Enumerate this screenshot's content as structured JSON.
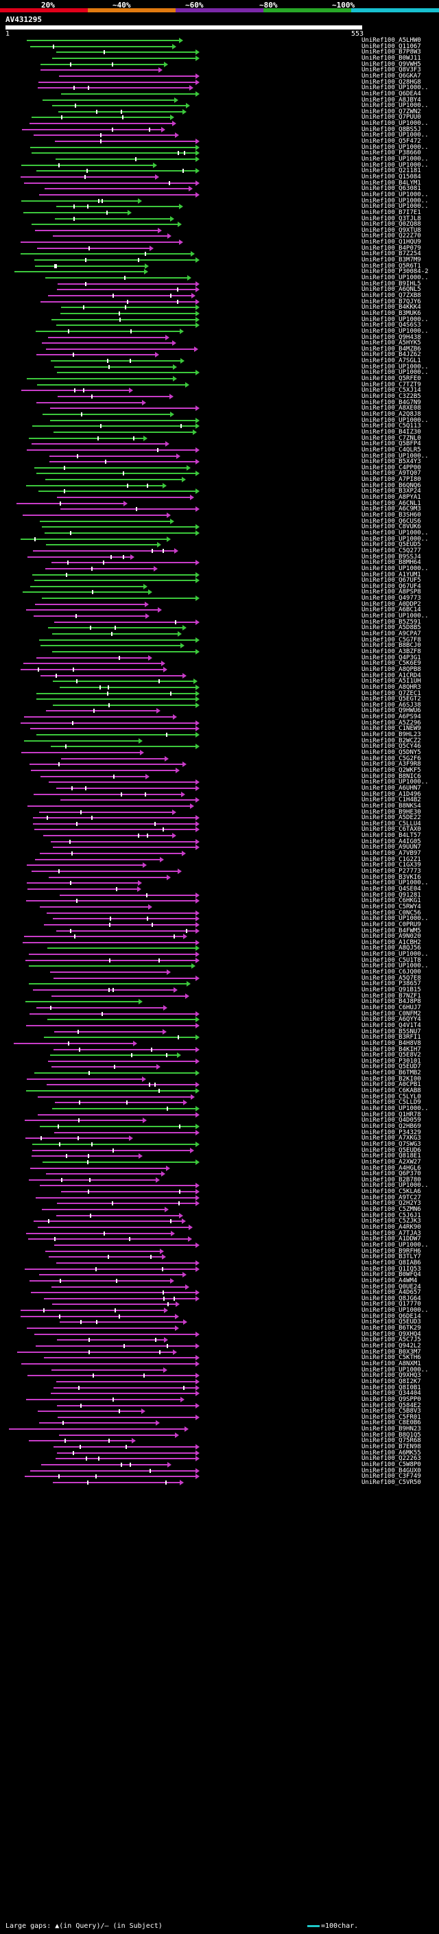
{
  "legend": {
    "labels": [
      "20%",
      "~40%",
      "~60%",
      "~80%",
      "~100%"
    ],
    "band_colors": [
      "#e0001a",
      "#e07a10",
      "#7a28a8",
      "#28a828",
      "#18c0d0"
    ]
  },
  "query": {
    "title": "AV431295",
    "start_tick": "1",
    "end_tick": "553"
  },
  "colors": {
    "high": "#3cc83c",
    "mid": "#c83cc8",
    "gap": "#ffffff"
  },
  "hits": [
    "UniRef100_A5LHW0",
    "UniRef100_Q11067",
    "UniRef100_B7P8W3",
    "UniRef100_B0WJ11",
    "UniRef100_Q9VWH5",
    "UniRef100_Q8V3F3",
    "UniRef100_Q6GKA7",
    "UniRef100_Q28HG8",
    "UniRef100_UP1000..",
    "UniRef100_Q6DEA4",
    "UniRef100_A8JBY4",
    "UniRef100_UP1000..",
    "UniRef100_Q7ZWN2",
    "UniRef100_Q7PUU0",
    "UniRef100_UP1000..",
    "UniRef100_Q8BS5J",
    "UniRef100_UP1000..",
    "UniRef100_Q5F472",
    "UniRef100_UP1000..",
    "UniRef100_P38660",
    "UniRef100_UP1000..",
    "UniRef100_UP1000..",
    "UniRef100_Q21181",
    "UniRef100_Q15084",
    "UniRef100_B4LYM1",
    "UniRef100_Q63081",
    "UniRef100_UP1000..",
    "UniRef100_UP1000..",
    "UniRef100_UP1000..",
    "UniRef100_B7I7E1",
    "UniRef100_Q3TJL8",
    "UniRef100_Q0ZQ88",
    "UniRef100_Q9XTU8",
    "UniRef100_Q22Z70",
    "UniRef100_Q1HQU9",
    "UniRef100_B4P079",
    "UniRef100_B7Z254",
    "UniRef100_B3M7M9",
    "UniRef100_Q5R6T1",
    "UniRef100_P30084-2",
    "UniRef100_UP1000..",
    "UniRef100_B9IHL5",
    "UniRef100_A6QNL5",
    "UniRef100_Q7ZXB8",
    "UniRef100_B7QJY6",
    "UniRef100_B4KKK4",
    "UniRef100_B3MUK6",
    "UniRef100_UP1000..",
    "UniRef100_Q4S6S3",
    "UniRef100_UP1000..",
    "UniRef100_Q9H438",
    "UniRef100_A5HYK5",
    "UniRef100_B4MZB6",
    "UniRef100_B4JZ62",
    "UniRef100_A7SGL1",
    "UniRef100_UP1000..",
    "UniRef100_UP1000..",
    "UniRef100_Q5RFE0",
    "UniRef100_C7TZT9",
    "UniRef100_C5XJ14",
    "UniRef100_C3Z2B5",
    "UniRef100_B4G7N9",
    "UniRef100_A8XE08",
    "UniRef100_A2Q8J8",
    "UniRef100_UP1000..",
    "UniRef100_C5Q113",
    "UniRef100_B4IZ30",
    "UniRef100_C7ZNL0",
    "UniRef100_Q5BFP4",
    "UniRef100_C4QLR5",
    "UniRef100_UP1000..",
    "UniRef100_B5X4Y3",
    "UniRef100_C4PP00",
    "UniRef100_A9TQ07",
    "UniRef100_A7PI80",
    "UniRef100_B6QNQ6",
    "UniRef100_B3XP24",
    "UniRef100_A8PYA1",
    "UniRef100_A6CNL1",
    "UniRef100_A6C9M3",
    "UniRef100_B3SH60",
    "UniRef100_Q6CUS6",
    "UniRef100_C8VUK6",
    "UniRef100_UP1000..",
    "UniRef100_UP1000..",
    "UniRef100_Q5EUD5",
    "UniRef100_C5Q277",
    "UniRef100_B9SSJ4",
    "UniRef100_B8MH64",
    "UniRef100_UP1000..",
    "UniRef100_A1YUM1",
    "UniRef100_Q67UF5",
    "UniRef100_Q67UF4",
    "UniRef100_A8PSP8",
    "UniRef100_Q49773",
    "UniRef100_A0DDP2",
    "UniRef100_A6BC14",
    "UniRef100_UP1000..",
    "UniRef100_B5Z591",
    "UniRef100_A5D8B5",
    "UniRef100_A9CPA7",
    "UniRef100_C5G7F8",
    "UniRef100_B8BCJ0",
    "UniRef100_A3BZF8",
    "UniRef100_Q4P3G1",
    "UniRef100_C5K6E9",
    "UniRef100_A8QPB8",
    "UniRef100_A1CRD4",
    "UniRef100_A5I1UH",
    "UniRef100_A8QHR3",
    "UniRef100_Q7ZEC1",
    "UniRef100_Q5EGT2",
    "UniRef100_A6SJ38",
    "UniRef100_Q9HWU6",
    "UniRef100_A6PS94",
    "UniRef100_A5Z296",
    "UniRef100_C1NEW9",
    "UniRef100_B9HL23",
    "UniRef100_B2WCZ2",
    "UniRef100_Q5CY46",
    "UniRef100_Q5DNY5",
    "UniRef100_C5G2F6",
    "UniRef100_A3F9R8",
    "UniRef100_Q2WKF5",
    "UniRef100_B8NIC6",
    "UniRef100_UP1000..",
    "UniRef100_A6UHN7",
    "UniRef100_A1D496",
    "UniRef100_C1H4B2",
    "UniRef100_B8NKS4",
    "UniRef100_B9HE30",
    "UniRef100_A5DE22",
    "UniRef100_C5LLU4",
    "UniRef100_C6TAX0",
    "UniRef100_B4LT57",
    "UniRef100_A4IG05",
    "UniRef100_A9UUN7",
    "UniRef100_A7VB97",
    "UniRef100_C1G2Z1",
    "UniRef100_C1GX39",
    "UniRef100_P27773",
    "UniRef100_B3VKI6",
    "UniRef100_UP1000..",
    "UniRef100_Q4SE04",
    "UniRef100_Q91281",
    "UniRef100_C6HKG1",
    "UniRef100_C5RWY4",
    "UniRef100_C0NC56",
    "UniRef100_UP1000..",
    "UniRef100_C0PRU9",
    "UniRef100_B4FWM5",
    "UniRef100_A9N020",
    "UniRef100_A1CBH2",
    "UniRef100_A8QJ56",
    "UniRef100_UP1000..",
    "UniRef100_C5U1T8",
    "UniRef100_UP1000..",
    "UniRef100_C6JQ00",
    "UniRef100_A5Q7E8",
    "UniRef100_P38657",
    "UniRef100_Q91B15",
    "UniRef100_B7NZF1",
    "UniRef100_B4J8P8",
    "UniRef100_C6HUJ7",
    "UniRef100_C0NFM2",
    "UniRef100_A6QYY4",
    "UniRef100_Q4V1T4",
    "UniRef100_B5SNU7",
    "UniRef100_B3RFI1",
    "UniRef100_B4H8V8",
    "UniRef100_B4KIH7",
    "UniRef100_Q5E8V2",
    "UniRef100_P30101",
    "UniRef100_Q5EUD7",
    "UniRef100_B6TMB2",
    "UniRef100_B2KI00",
    "UniRef100_A0CPB1",
    "UniRef100_C6KAB8",
    "UniRef100_C5LYL0",
    "UniRef100_C5LLD9",
    "UniRef100_UP1000..",
    "UniRef100_Q1HR78",
    "UniRef100_Q4D059",
    "UniRef100_Q2HB69",
    "UniRef100_P34329",
    "UniRef100_A7XKG3",
    "UniRef100_Q7SWG3",
    "UniRef100_Q5EUD6",
    "UniRef100_Q818E1",
    "UniRef100_A2XW27",
    "UniRef100_A4HGL6",
    "UniRef100_Q6P370",
    "UniRef100_B2B780",
    "UniRef100_UP1000..",
    "UniRef100_C5KLA6",
    "UniRef100_A9TC27",
    "UniRef100_Q2H2Y3",
    "UniRef100_C5ZMN6",
    "UniRef100_C5J6J1",
    "UniRef100_C5ZJK3",
    "UniRef100_A4RK90",
    "UniRef100_A7TJA3",
    "UniRef100_A1DDW7",
    "UniRef100_UP1000..",
    "UniRef100_B9RFH6",
    "UniRef100_B3TLY7",
    "UniRef100_Q8IAB6",
    "UniRef100_Q1IQ53",
    "UniRef100_B0WFQ4",
    "UniRef100_A4WM4",
    "UniRef100_Q0UE24",
    "UniRef100_A4D657",
    "UniRef100_Q8JG64",
    "UniRef100_Q17770",
    "UniRef100_UP1000..",
    "UniRef100_Q6DE14",
    "UniRef100_Q5EUD3",
    "UniRef100_B6TK29",
    "UniRef100_Q9XHQ4",
    "UniRef100_A5C7J5",
    "UniRef100_Q942L2",
    "UniRef100_B0X3M7",
    "UniRef100_C5KTH6",
    "UniRef100_A8NXM1",
    "UniRef100_UP1000..",
    "UniRef100_Q9XHQ3",
    "UniRef100_Q8I2K7",
    "UniRef100_Q8I0B1",
    "UniRef100_Q34404",
    "UniRef100_Q9SPP0",
    "UniRef100_Q584E2",
    "UniRef100_C5B8V3",
    "UniRef100_C5FR01",
    "UniRef100_C8E0B6",
    "UniRef100_B9HN23",
    "UniRef100_B8Q1Q5",
    "UniRef100_Q75R68",
    "UniRef100_B7EN98",
    "UniRef100_A6MK55",
    "UniRef100_Q22263",
    "UniRef100_C5W8P0",
    "UniRef100_B4GUX0",
    "UniRef100_C3F749",
    "UniRef100_C5VR50"
  ],
  "footer": {
    "text": "Large gaps: ▲(in Query)/— (in Subject)",
    "scale": "=100char."
  }
}
